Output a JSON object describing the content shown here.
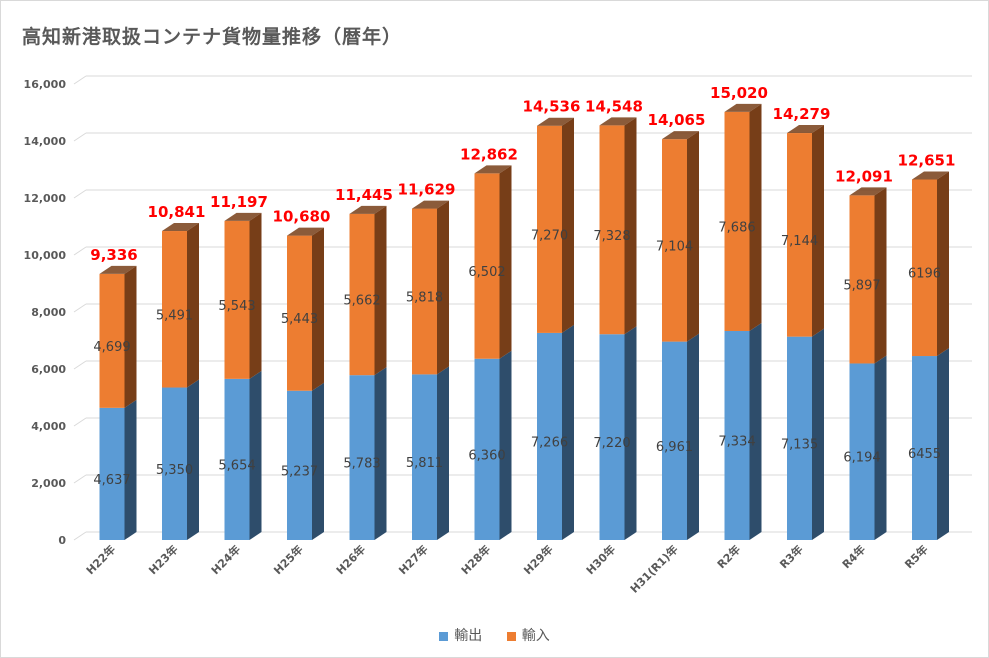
{
  "chart_data": {
    "type": "bar",
    "stacked": true,
    "three_d": true,
    "title": "高知新港取扱コンテナ貨物量推移（暦年）",
    "categories": [
      "H22年",
      "H23年",
      "H24年",
      "H25年",
      "H26年",
      "H27年",
      "H28年",
      "H29年",
      "H30年",
      "H31(R1)年",
      "R2年",
      "R3年",
      "R4年",
      "R5年"
    ],
    "series": [
      {
        "name": "輸出",
        "color": "#5b9bd5",
        "side_color": "#2e4d6b",
        "values": [
          4637,
          5350,
          5654,
          5237,
          5783,
          5811,
          6360,
          7266,
          7220,
          6961,
          7334,
          7135,
          6194,
          6455
        ],
        "labels": [
          "4,637",
          "5,350",
          "5,654",
          "5,237",
          "5,783",
          "5,811",
          "6,360",
          "7,266",
          "7,220",
          "6,961",
          "7,334",
          "7,135",
          "6,194",
          "6455"
        ]
      },
      {
        "name": "輸入",
        "color": "#ed7d31",
        "side_color": "#773e18",
        "values": [
          4699,
          5491,
          5543,
          5443,
          5662,
          5818,
          6502,
          7270,
          7328,
          7104,
          7686,
          7144,
          5897,
          6196
        ],
        "labels": [
          "4,699",
          "5,491",
          "5,543",
          "5,443",
          "5,662",
          "5,818",
          "6,502",
          "7,270",
          "7,328",
          "7,104",
          "7,686",
          "7,144",
          "5,897",
          "6196"
        ]
      }
    ],
    "totals": [
      "9,336",
      "10,841",
      "11,197",
      "10,680",
      "11,445",
      "11,629",
      "12,862",
      "14,536",
      "14,548",
      "14,065",
      "15,020",
      "14,279",
      "12,091",
      "12,651"
    ],
    "total_color": "#ff0000",
    "ylim": [
      0,
      16000
    ],
    "yticks": [
      "0",
      "2,000",
      "4,000",
      "6,000",
      "8,000",
      "10,000",
      "12,000",
      "14,000",
      "16,000"
    ],
    "grid": true,
    "legend": "bottom"
  }
}
